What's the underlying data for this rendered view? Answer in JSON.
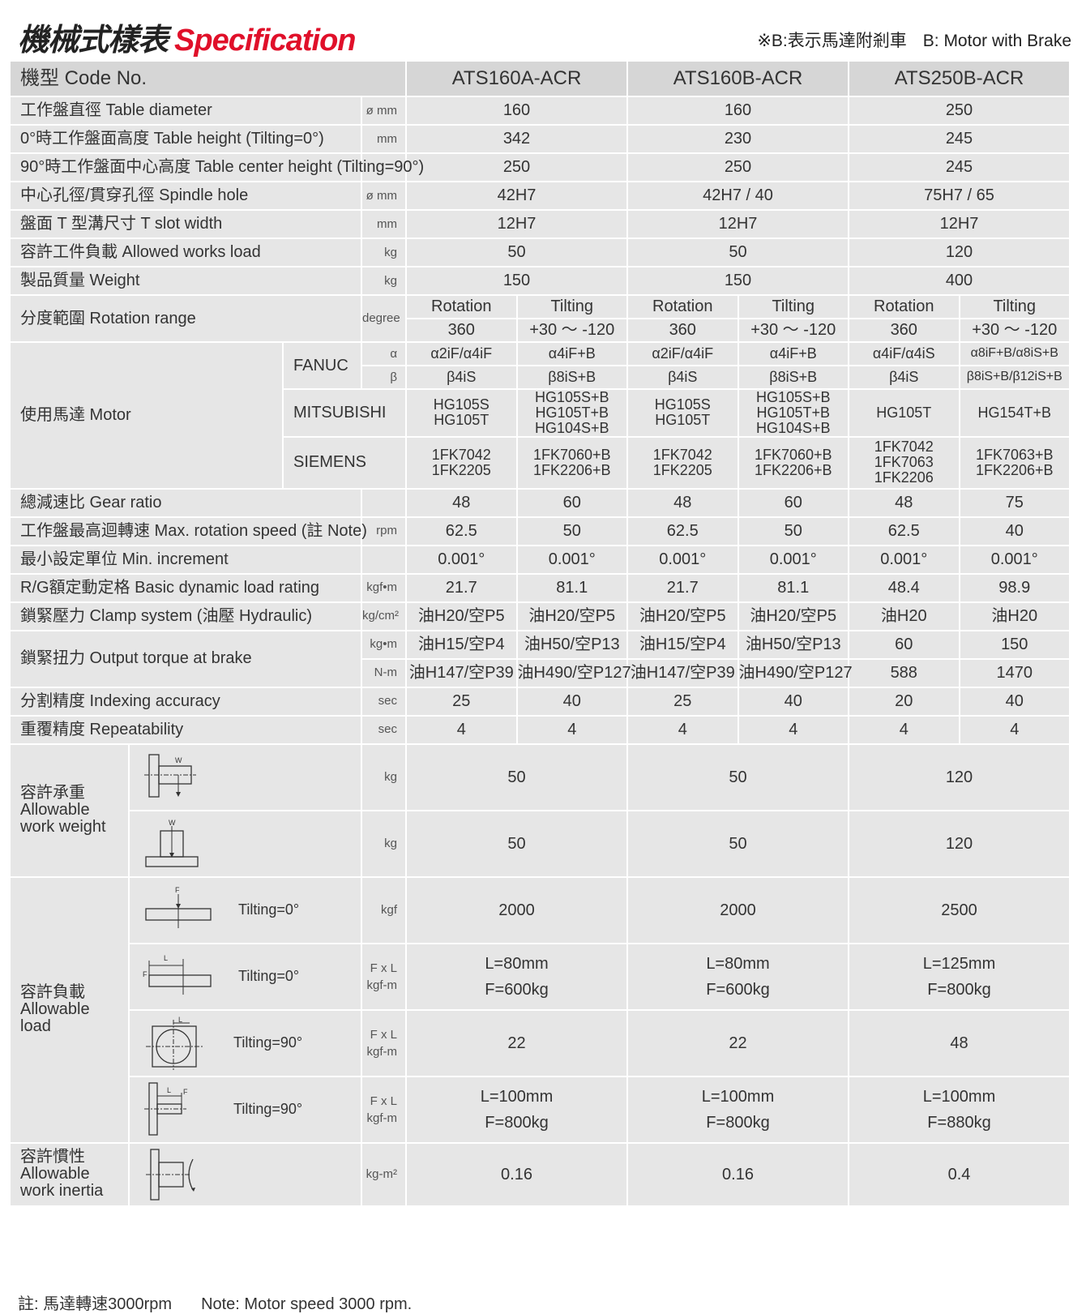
{
  "title": {
    "zh": "機械式樣表",
    "en": "Specification"
  },
  "brake_note": {
    "zh": "※B:表示馬達附剎車",
    "en": "B: Motor with Brake"
  },
  "header": {
    "label": "機型 Code No.",
    "models": [
      "ATS160A-ACR",
      "ATS160B-ACR",
      "ATS250B-ACR"
    ]
  },
  "rows": [
    {
      "label": "工作盤直徑 Table diameter",
      "unit": "ø mm",
      "values": [
        "160",
        "160",
        "250"
      ]
    },
    {
      "label": "0°時工作盤面高度 Table height (Tilting=0°)",
      "unit": "mm",
      "values": [
        "342",
        "230",
        "245"
      ]
    },
    {
      "label": "90°時工作盤面中心高度 Table center height (Tilting=90°)",
      "unit": "",
      "values": [
        "250",
        "250",
        "245"
      ]
    },
    {
      "label": "中心孔徑/貫穿孔徑 Spindle hole",
      "unit": "ø mm",
      "values": [
        "42H7",
        "42H7 / 40",
        "75H7 / 65"
      ]
    },
    {
      "label": "盤面 T 型溝尺寸 T slot width",
      "unit": "mm",
      "values": [
        "12H7",
        "12H7",
        "12H7"
      ]
    },
    {
      "label": "容許工件負載 Allowed works load",
      "unit": "kg",
      "values": [
        "50",
        "50",
        "120"
      ]
    },
    {
      "label": "製品質量 Weight",
      "unit": "kg",
      "values": [
        "150",
        "150",
        "400"
      ]
    }
  ],
  "rotation": {
    "label": "分度範圍 Rotation range",
    "unit": "degree",
    "sub": [
      "Rotation",
      "Tilting",
      "Rotation",
      "Tilting",
      "Rotation",
      "Tilting"
    ],
    "values": [
      "360",
      "+30 ～ -120",
      "360",
      "+30 ～ -120",
      "360",
      "+30 ～ -120"
    ]
  },
  "motor": {
    "label": "使用馬達  Motor",
    "fanuc": {
      "brand": "FANUC",
      "alpha": "α",
      "beta": "β",
      "alpha_values": [
        "α2iF/α4iF",
        "α4iF+B",
        "α2iF/α4iF",
        "α4iF+B",
        "α4iF/α4iS",
        "α8iF+B/α8iS+B"
      ],
      "beta_values": [
        "β4iS",
        "β8iS+B",
        "β4iS",
        "β8iS+B",
        "β4iS",
        "β8iS+B/β12iS+B"
      ]
    },
    "mitsubishi": {
      "brand": "MITSUBISHI",
      "values": [
        [
          "HG105S",
          "HG105T"
        ],
        [
          "HG105S+B",
          "HG105T+B",
          "HG104S+B"
        ],
        [
          "HG105S",
          "HG105T"
        ],
        [
          "HG105S+B",
          "HG105T+B",
          "HG104S+B"
        ],
        [
          "HG105T"
        ],
        [
          "HG154T+B"
        ]
      ]
    },
    "siemens": {
      "brand": "SIEMENS",
      "values": [
        [
          "1FK7042",
          "1FK2205"
        ],
        [
          "1FK7060+B",
          "1FK2206+B"
        ],
        [
          "1FK7042",
          "1FK2205"
        ],
        [
          "1FK7060+B",
          "1FK2206+B"
        ],
        [
          "1FK7042",
          "1FK7063",
          "1FK2206"
        ],
        [
          "1FK7063+B",
          "1FK2206+B"
        ]
      ]
    }
  },
  "rows6": [
    {
      "label": "總減速比 Gear ratio",
      "unit": "",
      "values": [
        "48",
        "60",
        "48",
        "60",
        "48",
        "75"
      ]
    },
    {
      "label": "工作盤最高迴轉速 Max. rotation speed (註 Note)",
      "unit": "rpm",
      "values": [
        "62.5",
        "50",
        "62.5",
        "50",
        "62.5",
        "40"
      ]
    },
    {
      "label": "最小設定單位 Min. increment",
      "unit": "",
      "values": [
        "0.001°",
        "0.001°",
        "0.001°",
        "0.001°",
        "0.001°",
        "0.001°"
      ]
    },
    {
      "label": "R/G額定動定格 Basic dynamic load rating",
      "unit": "kgf•m",
      "values": [
        "21.7",
        "81.1",
        "21.7",
        "81.1",
        "48.4",
        "98.9"
      ]
    },
    {
      "label": "鎖緊壓力 Clamp system (油壓 Hydraulic)",
      "unit": "kg/cm²",
      "values": [
        "油H20/空P5",
        "油H20/空P5",
        "油H20/空P5",
        "油H20/空P5",
        "油H20",
        "油H20"
      ]
    }
  ],
  "torque": {
    "label": "鎖緊扭力 Output torque at brake",
    "units": [
      "kg•m",
      "N-m"
    ],
    "values": [
      [
        "油H15/空P4",
        "油H50/空P13",
        "油H15/空P4",
        "油H50/空P13",
        "60",
        "150"
      ],
      [
        "油H147/空P39",
        "油H490/空P127",
        "油H147/空P39",
        "油H490/空P127",
        "588",
        "1470"
      ]
    ]
  },
  "rows6b": [
    {
      "label": "分割精度 Indexing accuracy",
      "unit": "sec",
      "values": [
        "25",
        "40",
        "25",
        "40",
        "20",
        "40"
      ]
    },
    {
      "label": "重覆精度 Repeatability",
      "unit": "sec",
      "values": [
        "4",
        "4",
        "4",
        "4",
        "4",
        "4"
      ]
    }
  ],
  "work_weight": {
    "label": [
      "容許承重",
      "Allowable",
      "work weight"
    ],
    "icon_letter": "W",
    "rows": [
      {
        "unit": "kg",
        "values": [
          "50",
          "50",
          "120"
        ]
      },
      {
        "unit": "kg",
        "values": [
          "50",
          "50",
          "120"
        ]
      }
    ]
  },
  "load": {
    "label": [
      "容許負載",
      "Allowable",
      "load"
    ],
    "F": "F",
    "L": "L",
    "rows": [
      {
        "tilt": "Tilting=0°",
        "unit": [
          "kgf"
        ],
        "values": [
          [
            "2000"
          ],
          [
            "2000"
          ],
          [
            "2500"
          ]
        ]
      },
      {
        "tilt": "Tilting=0°",
        "unit": [
          "F x L",
          "kgf-m"
        ],
        "values": [
          [
            "L=80mm",
            "F=600kg"
          ],
          [
            "L=80mm",
            "F=600kg"
          ],
          [
            "L=125mm",
            "F=800kg"
          ]
        ]
      },
      {
        "tilt": "Tilting=90°",
        "unit": [
          "F x L",
          "kgf-m"
        ],
        "values": [
          [
            "22"
          ],
          [
            "22"
          ],
          [
            "48"
          ]
        ]
      },
      {
        "tilt": "Tilting=90°",
        "unit": [
          "F x L",
          "kgf-m"
        ],
        "values": [
          [
            "L=100mm",
            "F=800kg"
          ],
          [
            "L=100mm",
            "F=800kg"
          ],
          [
            "L=100mm",
            "F=880kg"
          ]
        ]
      }
    ]
  },
  "inertia": {
    "label": [
      "容許慣性",
      "Allowable",
      "work inertia"
    ],
    "unit": "kg-m²",
    "values": [
      "0.16",
      "0.16",
      "0.4"
    ]
  },
  "footnote": {
    "zh": "註: 馬達轉速3000rpm",
    "en": "Note: Motor speed 3000 rpm."
  },
  "colors": {
    "accent": "#e0102a",
    "cell_bg": "#e6e6e6",
    "header_bg": "#d6d6d6"
  }
}
